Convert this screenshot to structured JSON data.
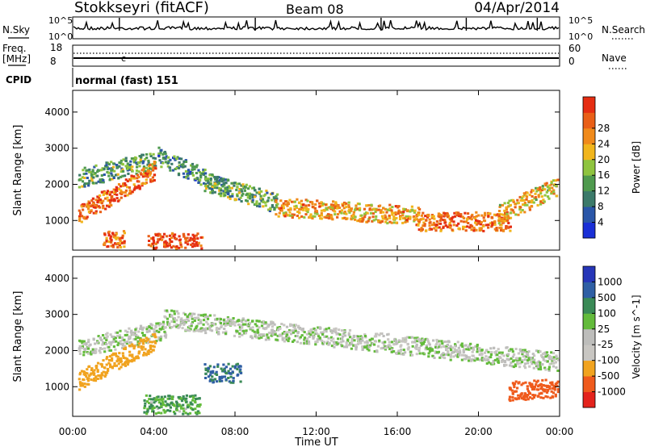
{
  "header": {
    "station": "Stokkseyri (fitACF)",
    "beam": "Beam 08",
    "date": "04/Apr/2014"
  },
  "noise_panel": {
    "left_label": "N.Sky",
    "right_label": "N.Search",
    "left_ticks": [
      "10^5",
      "10^0"
    ],
    "right_ticks": [
      "10^5",
      "10^0"
    ]
  },
  "freq_panel": {
    "left_label_1": "Freq.",
    "left_label_2": "[MHz]",
    "right_label": "Nave",
    "left_ticks": [
      "18",
      "8"
    ],
    "right_ticks": [
      "60",
      "0"
    ]
  },
  "cpid_panel": {
    "label": "CPID",
    "text": "normal (fast) 151"
  },
  "axes": {
    "xlabel": "Time UT",
    "xticks": [
      "00:00",
      "04:00",
      "08:00",
      "12:00",
      "16:00",
      "20:00",
      "00:00"
    ],
    "ylabel": "Slant Range [km]",
    "yticks": [
      "1000",
      "2000",
      "3000",
      "4000"
    ]
  },
  "colors": {
    "power_scale": [
      "#1a2fd6",
      "#2a56a8",
      "#3c7a6a",
      "#4f9a4e",
      "#8fc43f",
      "#f1b51c",
      "#f08a1b",
      "#e95f17",
      "#e52d12"
    ],
    "velocity_scale": [
      "#e4231c",
      "#ef5a1c",
      "#f1a31f",
      "#c8c6c2",
      "#bdbdbb",
      "#63bb3b",
      "#3a8a56",
      "#2f5fa4",
      "#2636b8"
    ]
  },
  "chart_data": [
    {
      "type": "heatmap",
      "title": "Power",
      "xlabel": "Time UT",
      "ylabel": "Slant Range [km]",
      "xlim": [
        "00:00",
        "24:00"
      ],
      "ylim": [
        180,
        4600
      ],
      "colorbar": {
        "label": "Power [dB]",
        "ticks": [
          "4",
          "8",
          "12",
          "16",
          "20",
          "24",
          "28"
        ],
        "range": [
          0,
          32
        ]
      },
      "features": [
        {
          "t": [
            0.3,
            4.0
          ],
          "r_center": [
            2200,
            2700
          ],
          "level_db": 12
        },
        {
          "t": [
            0.3,
            4.0
          ],
          "r_center": [
            1200,
            2400
          ],
          "level_db": 26
        },
        {
          "t": [
            1.5,
            2.5
          ],
          "r_center": [
            480,
            480
          ],
          "level_db": 26
        },
        {
          "t": [
            3.7,
            6.3
          ],
          "r_center": [
            420,
            420
          ],
          "level_db": 30
        },
        {
          "t": [
            4.2,
            7.6
          ],
          "r_center": [
            2800,
            1900
          ],
          "level_db": 10
        },
        {
          "t": [
            6.5,
            10.0
          ],
          "r_center": [
            2100,
            1500
          ],
          "level_db": 13
        },
        {
          "t": [
            10.0,
            17.0
          ],
          "r_center": [
            1400,
            1150
          ],
          "level_db": 22
        },
        {
          "t": [
            17.0,
            21.5
          ],
          "r_center": [
            1000,
            1000
          ],
          "level_db": 26
        },
        {
          "t": [
            21.0,
            24.0
          ],
          "r_center": [
            1200,
            2000
          ],
          "level_db": 20
        }
      ]
    },
    {
      "type": "heatmap",
      "title": "Velocity",
      "xlabel": "Time UT",
      "ylabel": "Slant Range [km]",
      "xlim": [
        "00:00",
        "24:00"
      ],
      "ylim": [
        180,
        4600
      ],
      "colorbar": {
        "label": "Velocity [m s^-1]",
        "ticks": [
          "-1000",
          "-500",
          "-100",
          "-25",
          "25",
          "100",
          "500",
          "1000"
        ],
        "range": [
          -1000,
          1000
        ]
      },
      "features": [
        {
          "t": [
            0.3,
            4.5
          ],
          "r_center": [
            2100,
            2600
          ],
          "velocity": 0
        },
        {
          "t": [
            4.5,
            24.0
          ],
          "r_center": [
            2900,
            1700
          ],
          "velocity": 0
        },
        {
          "t": [
            0.3,
            4.0
          ],
          "r_center": [
            1200,
            2300
          ],
          "velocity": -300
        },
        {
          "t": [
            3.5,
            6.2
          ],
          "r_center": [
            530,
            530
          ],
          "velocity": 100
        },
        {
          "t": [
            6.5,
            8.2
          ],
          "r_center": [
            1400,
            1400
          ],
          "velocity": 500
        },
        {
          "t": [
            21.5,
            24.0
          ],
          "r_center": [
            900,
            1000
          ],
          "velocity": -600
        }
      ]
    }
  ]
}
